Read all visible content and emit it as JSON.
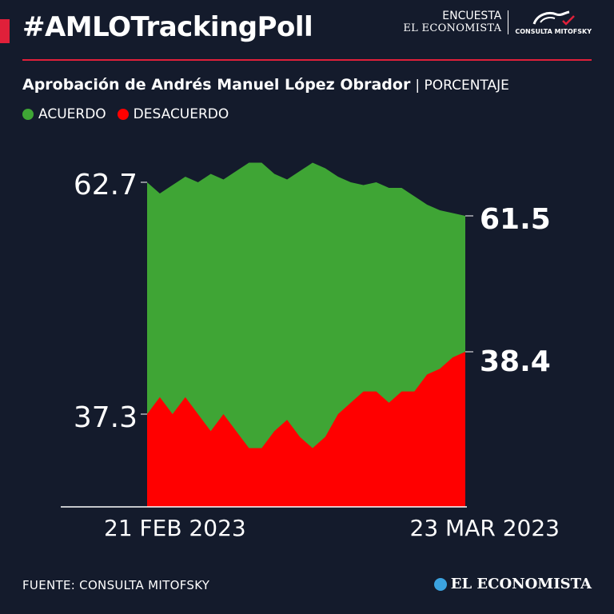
{
  "header": {
    "hashtag": "#AMLOTrackingPoll",
    "brand_line1": "ENCUESTA",
    "brand_line2": "EL ECONOMISTA",
    "partner_label": "CONSULTA MITOFSKY"
  },
  "subtitle": {
    "main": "Aprobación de Andrés Manuel López Obrador",
    "unit": "| PORCENTAJE"
  },
  "legend": [
    {
      "label": "ACUERDO",
      "color": "#3fa535"
    },
    {
      "label": "DESACUERDO",
      "color": "#ff0000"
    }
  ],
  "chart_data": {
    "type": "area",
    "x_start_label": "21  FEB 2023",
    "x_end_label": "23 MAR 2023",
    "series": [
      {
        "name": "ACUERDO",
        "color": "#3fa535",
        "values": [
          62.7,
          62.3,
          62.6,
          62.9,
          62.7,
          63.0,
          62.8,
          63.1,
          63.4,
          63.4,
          63.0,
          62.8,
          63.1,
          63.4,
          63.2,
          62.9,
          62.7,
          62.6,
          62.7,
          62.5,
          62.5,
          62.2,
          61.9,
          61.7,
          61.6,
          61.5
        ]
      },
      {
        "name": "DESACUERDO",
        "color": "#ff0000",
        "values": [
          37.3,
          37.6,
          37.3,
          37.6,
          37.3,
          37.0,
          37.3,
          37.0,
          36.7,
          36.7,
          37.0,
          37.2,
          36.9,
          36.7,
          36.9,
          37.3,
          37.5,
          37.7,
          37.7,
          37.5,
          37.7,
          37.7,
          38.0,
          38.1,
          38.3,
          38.4
        ]
      }
    ],
    "start_labels": [
      "62.7",
      "37.3"
    ],
    "end_labels": [
      "61.5",
      "38.4"
    ]
  },
  "footer": {
    "source": "FUENTE: CONSULTA MITOFSKY",
    "logo": "EL ECONOMISTA"
  }
}
